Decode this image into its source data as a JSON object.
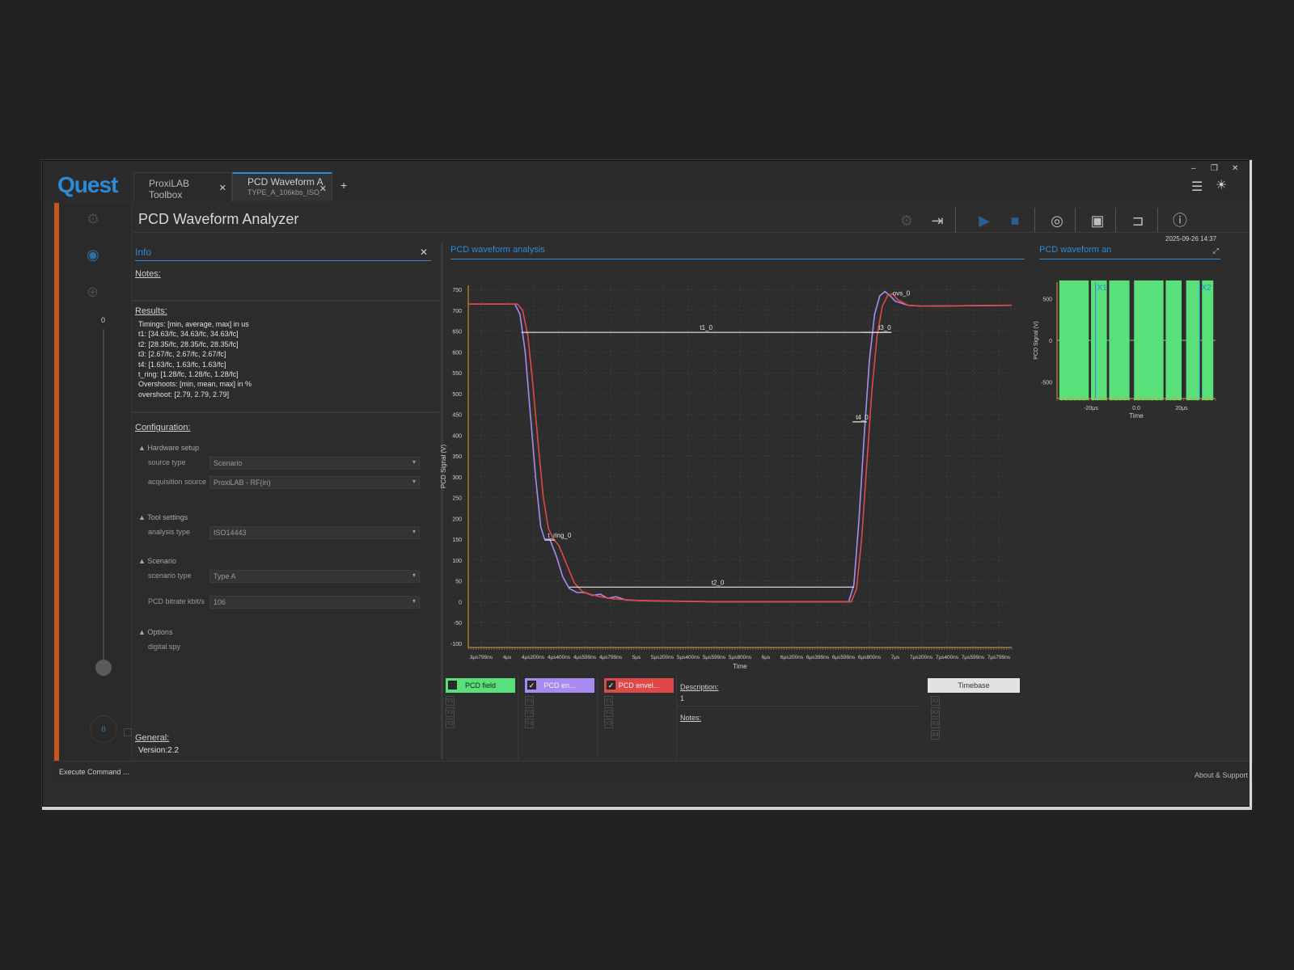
{
  "app": {
    "logo": "Quest"
  },
  "tabs": [
    {
      "label": "ProxiLAB Toolbox",
      "sub": ""
    },
    {
      "label": "PCD Waveform A",
      "sub": "TYPE_A_106kbs_ISO_i"
    }
  ],
  "header": {
    "title": "PCD Waveform Analyzer",
    "timestamp": "2025-09-26 14:37"
  },
  "rail": {
    "slider_value": "0",
    "bottom_button": "0"
  },
  "info": {
    "title": "Info",
    "notes_label": "Notes:",
    "results_label": "Results:",
    "results_lines": [
      "Timings: [min, average, max] in us",
      "t1: [34.63/fc, 34.63/fc, 34.63/fc]",
      "t2: [28.35/fc, 28.35/fc, 28.35/fc]",
      "t3: [2.67/fc, 2.67/fc, 2.67/fc]",
      "t4: [1.63/fc, 1.63/fc, 1.63/fc]",
      "t_ring: [1.28/fc, 1.28/fc, 1.28/fc]",
      "Overshoots: [min, mean, max] in %",
      "overshoot: [2.79, 2.79, 2.79]"
    ],
    "configuration_label": "Configuration:",
    "groups": {
      "hardware": "Hardware setup",
      "tool": "Tool settings",
      "scenario": "Scenario",
      "options": "Options"
    },
    "fields": {
      "source_type": {
        "label": "source type",
        "value": "Scenario"
      },
      "acquisition_source": {
        "label": "acquisition source",
        "value": "ProxiLAB - RF(in)"
      },
      "analysis_type": {
        "label": "analysis type",
        "value": "ISO14443"
      },
      "scenario_type": {
        "label": "scenario type",
        "value": "Type A"
      },
      "pcd_bitrate": {
        "label": "PCD bitrate  kbit/s",
        "value": "106"
      },
      "digital_spy": {
        "label": "digital spy"
      }
    },
    "general_label": "General:",
    "version": "Version:2.2"
  },
  "chart_panel": {
    "title": "PCD waveform analysis"
  },
  "mini_panel": {
    "title": "PCD waveform an"
  },
  "chart_data": [
    {
      "type": "line",
      "xlabel": "Time",
      "ylabel": "PCD Signal (V)",
      "ylim": [
        -110,
        760
      ],
      "yticks": [
        -100,
        -50,
        0,
        50,
        100,
        150,
        200,
        250,
        300,
        350,
        400,
        450,
        500,
        550,
        600,
        650,
        700,
        750
      ],
      "xlim_us": [
        3.7,
        7.9
      ],
      "x_ticks": [
        {
          "t": 3.7999,
          "label": "3μs799ns"
        },
        {
          "t": 4.0,
          "label": "4μs"
        },
        {
          "t": 4.2,
          "label": "4μs200ns"
        },
        {
          "t": 4.4,
          "label": "4μs400ns"
        },
        {
          "t": 4.5999,
          "label": "4μs599ns"
        },
        {
          "t": 4.7999,
          "label": "4μs799ns"
        },
        {
          "t": 5.0,
          "label": "5μs"
        },
        {
          "t": 5.2,
          "label": "5μs200ns"
        },
        {
          "t": 5.4,
          "label": "5μs400ns"
        },
        {
          "t": 5.5999,
          "label": "5μs599ns"
        },
        {
          "t": 5.8,
          "label": "5μs800ns"
        },
        {
          "t": 6.0,
          "label": "6μs"
        },
        {
          "t": 6.2,
          "label": "6μs200ns"
        },
        {
          "t": 6.3999,
          "label": "6μs399ns"
        },
        {
          "t": 6.5999,
          "label": "6μs599ns"
        },
        {
          "t": 6.8,
          "label": "6μs800ns"
        },
        {
          "t": 7.0,
          "label": "7μs"
        },
        {
          "t": 7.2,
          "label": "7μs200ns"
        },
        {
          "t": 7.4,
          "label": "7μs400ns"
        },
        {
          "t": 7.5999,
          "label": "7μs599ns"
        },
        {
          "t": 7.7999,
          "label": "7μs799ns"
        }
      ],
      "grid": true,
      "series": [
        {
          "name": "PCD en...",
          "color": "#a98af0",
          "points": [
            [
              3.7,
              715
            ],
            [
              4.06,
              715
            ],
            [
              4.1,
              690
            ],
            [
              4.14,
              600
            ],
            [
              4.18,
              450
            ],
            [
              4.22,
              300
            ],
            [
              4.26,
              180
            ],
            [
              4.29,
              150
            ],
            [
              4.33,
              150
            ],
            [
              4.38,
              110
            ],
            [
              4.43,
              60
            ],
            [
              4.48,
              32
            ],
            [
              4.54,
              22
            ],
            [
              4.6,
              22
            ],
            [
              4.66,
              15
            ],
            [
              4.72,
              18
            ],
            [
              4.78,
              8
            ],
            [
              4.84,
              12
            ],
            [
              4.92,
              4
            ],
            [
              5.1,
              2
            ],
            [
              5.6,
              0
            ],
            [
              6.4,
              0
            ],
            [
              6.64,
              0
            ],
            [
              6.68,
              40
            ],
            [
              6.72,
              200
            ],
            [
              6.76,
              400
            ],
            [
              6.8,
              580
            ],
            [
              6.84,
              690
            ],
            [
              6.88,
              735
            ],
            [
              6.92,
              745
            ],
            [
              6.96,
              735
            ],
            [
              7.0,
              722
            ],
            [
              7.1,
              712
            ],
            [
              7.2,
              710
            ],
            [
              7.9,
              712
            ]
          ]
        },
        {
          "name": "PCD envel...",
          "color": "#e04848",
          "points": [
            [
              3.7,
              715
            ],
            [
              4.08,
              715
            ],
            [
              4.12,
              700
            ],
            [
              4.16,
              640
            ],
            [
              4.2,
              520
            ],
            [
              4.24,
              380
            ],
            [
              4.28,
              250
            ],
            [
              4.32,
              175
            ],
            [
              4.36,
              150
            ],
            [
              4.4,
              135
            ],
            [
              4.46,
              90
            ],
            [
              4.52,
              45
            ],
            [
              4.58,
              25
            ],
            [
              4.64,
              18
            ],
            [
              4.72,
              12
            ],
            [
              4.82,
              7
            ],
            [
              5.0,
              3
            ],
            [
              5.6,
              0
            ],
            [
              6.4,
              0
            ],
            [
              6.66,
              0
            ],
            [
              6.7,
              30
            ],
            [
              6.74,
              150
            ],
            [
              6.78,
              330
            ],
            [
              6.82,
              510
            ],
            [
              6.86,
              640
            ],
            [
              6.9,
              710
            ],
            [
              6.94,
              735
            ],
            [
              6.98,
              740
            ],
            [
              7.02,
              725
            ],
            [
              7.1,
              712
            ],
            [
              7.2,
              710
            ],
            [
              7.9,
              712
            ]
          ]
        }
      ],
      "markers": [
        {
          "label": "t1_0",
          "from_us": 4.11,
          "to_us": 6.97,
          "y": 647
        },
        {
          "label": "t3_0",
          "from_us": 6.74,
          "to_us": 6.97,
          "y": 647
        },
        {
          "label": "t4_0",
          "from_us": 6.67,
          "to_us": 6.78,
          "y": 432
        },
        {
          "label": "t_ring_0",
          "from_us": 4.29,
          "to_us": 4.37,
          "y": 148
        },
        {
          "label": "t2_0",
          "from_us": 4.48,
          "to_us": 6.68,
          "y": 35
        },
        {
          "label": "ovs_0",
          "at_us": 6.98,
          "y": 740
        }
      ]
    },
    {
      "type": "area",
      "xlabel": "Time",
      "ylabel": "PCD Signal (V)",
      "ylim": [
        -700,
        700
      ],
      "yticks": [
        -500,
        0,
        500
      ],
      "xlim_us": [
        -35,
        35
      ],
      "x_ticks": [
        {
          "t": -20,
          "label": "-20μs"
        },
        {
          "t": 0,
          "label": "0.0"
        },
        {
          "t": 20,
          "label": "20μs"
        }
      ],
      "cursors": [
        {
          "label": "X1",
          "t": -18
        },
        {
          "label": "X2",
          "t": 28
        }
      ],
      "series": [
        {
          "name": "PCD field",
          "color": "#5ae07a",
          "amplitude": 720,
          "blocks_us": [
            [
              -34,
              -21
            ],
            [
              -20,
              -13
            ],
            [
              -12,
              -3
            ],
            [
              -1,
              12
            ],
            [
              13,
              20
            ],
            [
              22,
              28
            ],
            [
              29,
              34
            ]
          ]
        }
      ]
    }
  ],
  "legend": {
    "pcd_field": {
      "label": "PCD field",
      "color": "#5ae07a",
      "checked": false
    },
    "pcd_env_a": {
      "label": "PCD en...",
      "color": "#a98af0",
      "checked": true
    },
    "pcd_env_b": {
      "label": "PCD envel...",
      "color": "#e04848",
      "checked": true
    },
    "cursor_slots_y": [
      "Y1",
      "Y2",
      "Y3"
    ],
    "cursor_slots_x": [
      "X1",
      "X2",
      "X3",
      "X4"
    ]
  },
  "description": {
    "label": "Description:",
    "value": "1",
    "notes_label": "Notes:"
  },
  "timebase": {
    "label": "Timebase"
  },
  "statusbar": {
    "left": "Execute Command ...",
    "right": "About & Support"
  },
  "icons": {
    "settings": "gear-icon",
    "export": "exit-icon",
    "play": "play-icon",
    "stop": "stop-icon",
    "view": "eye-icon",
    "save": "save-icon",
    "open": "folder-icon",
    "help": "help-icon"
  },
  "colors": {
    "accent": "#2e8ad8",
    "rail_accent": "#c8551c",
    "background": "#2d2d2d"
  }
}
